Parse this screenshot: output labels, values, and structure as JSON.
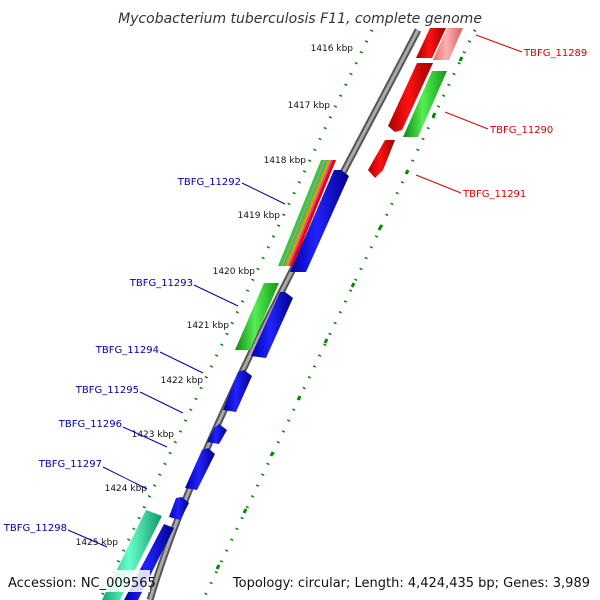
{
  "title": "Mycobacterium tuberculosis F11, complete genome",
  "footer": {
    "accession": "Accession: NC_009565",
    "topology": "Topology: circular; Length: 4,424,435 bp; Genes: 3,989"
  },
  "ticks": [
    "1416 kbp",
    "1417 kbp",
    "1418 kbp",
    "1419 kbp",
    "1420 kbp",
    "1421 kbp",
    "1422 kbp",
    "1423 kbp",
    "1424 kbp",
    "1425 kbp"
  ],
  "genes_reverse": [
    "TBFG_11289",
    "TBFG_11290",
    "TBFG_11291"
  ],
  "genes_forward": [
    "TBFG_11292",
    "TBFG_11293",
    "TBFG_11294",
    "TBFG_11295",
    "TBFG_11296",
    "TBFG_11297",
    "TBFG_11298"
  ],
  "colors": {
    "reverse_label": "#dd0000",
    "forward_label": "#0000aa",
    "cds_blue": "#0000ee",
    "cds_red": "#ee0000",
    "cds_pink": "#f08080",
    "green": "#33cc33",
    "teal": "#33eeaa",
    "backbone": "#888888",
    "dots": "#008800"
  }
}
